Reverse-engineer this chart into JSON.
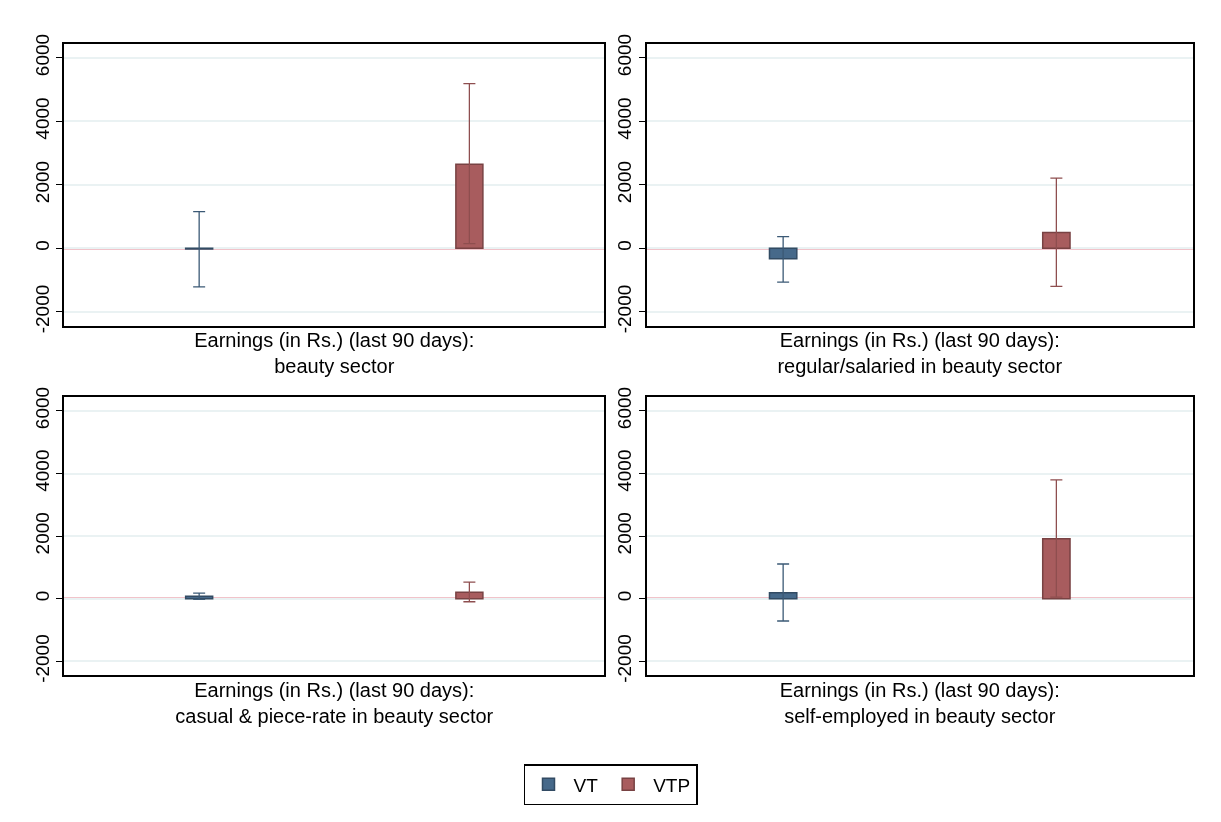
{
  "chart_data": [
    {
      "type": "bar",
      "xlabel": "Earnings (in Rs.) (last 90 days):\nbeauty sector",
      "categories": [
        null,
        null
      ],
      "ylim": [
        -2450,
        6450
      ],
      "yticks": [
        -2000,
        0,
        2000,
        4000,
        6000
      ],
      "grid": "y",
      "legend": "bottom",
      "ref_lines": [
        {
          "axis": "y",
          "value": 0,
          "color": "#c8102e"
        }
      ],
      "series": [
        {
          "name": "VT",
          "color": "#46698a",
          "values": [
            -20,
            null
          ],
          "errors": [
            [
              -1215,
              1155
            ],
            null
          ]
        },
        {
          "name": "VTP",
          "color": "#a85c5e",
          "values": [
            null,
            2650
          ],
          "errors": [
            null,
            [
              150,
              5190
            ]
          ]
        }
      ]
    },
    {
      "type": "bar",
      "xlabel": "Earnings (in Rs.) (last 90 days):\nregular/salaried in beauty sector",
      "categories": [
        null,
        null
      ],
      "ylim": [
        -2450,
        6450
      ],
      "yticks": [
        -2000,
        0,
        2000,
        4000,
        6000
      ],
      "grid": "y",
      "legend": "bottom",
      "ref_lines": [
        {
          "axis": "y",
          "value": 0,
          "color": "#c8102e"
        }
      ],
      "series": [
        {
          "name": "VT",
          "color": "#46698a",
          "values": [
            -330,
            null
          ],
          "errors": [
            [
              -1065,
              370
            ],
            null
          ]
        },
        {
          "name": "VTP",
          "color": "#a85c5e",
          "values": [
            null,
            500
          ],
          "errors": [
            null,
            [
              -1195,
              2210
            ]
          ]
        }
      ]
    },
    {
      "type": "bar",
      "xlabel": "Earnings (in Rs.) (last 90 days):\ncasual & piece-rate in beauty sector",
      "categories": [
        null,
        null
      ],
      "ylim": [
        -2450,
        6450
      ],
      "yticks": [
        -2000,
        0,
        2000,
        4000,
        6000
      ],
      "grid": "y",
      "legend": "bottom",
      "ref_lines": [
        {
          "axis": "y",
          "value": 0,
          "color": "#c8102e"
        }
      ],
      "series": [
        {
          "name": "VT",
          "color": "#46698a",
          "values": [
            80,
            null
          ],
          "errors": [
            [
              -20,
              180
            ],
            null
          ]
        },
        {
          "name": "VTP",
          "color": "#a85c5e",
          "values": [
            null,
            210
          ],
          "errors": [
            null,
            [
              -95,
              530
            ]
          ]
        }
      ]
    },
    {
      "type": "bar",
      "xlabel": "Earnings (in Rs.) (last 90 days):\nself-employed in beauty sector",
      "categories": [
        null,
        null
      ],
      "ylim": [
        -2450,
        6450
      ],
      "yticks": [
        -2000,
        0,
        2000,
        4000,
        6000
      ],
      "grid": "y",
      "legend": "bottom",
      "ref_lines": [
        {
          "axis": "y",
          "value": 0,
          "color": "#c8102e"
        }
      ],
      "series": [
        {
          "name": "VT",
          "color": "#46698a",
          "values": [
            190,
            null
          ],
          "errors": [
            [
              -710,
              1110
            ],
            null
          ]
        },
        {
          "name": "VTP",
          "color": "#a85c5e",
          "values": [
            null,
            1920
          ],
          "errors": [
            null,
            [
              50,
              3800
            ]
          ]
        }
      ]
    }
  ]
}
